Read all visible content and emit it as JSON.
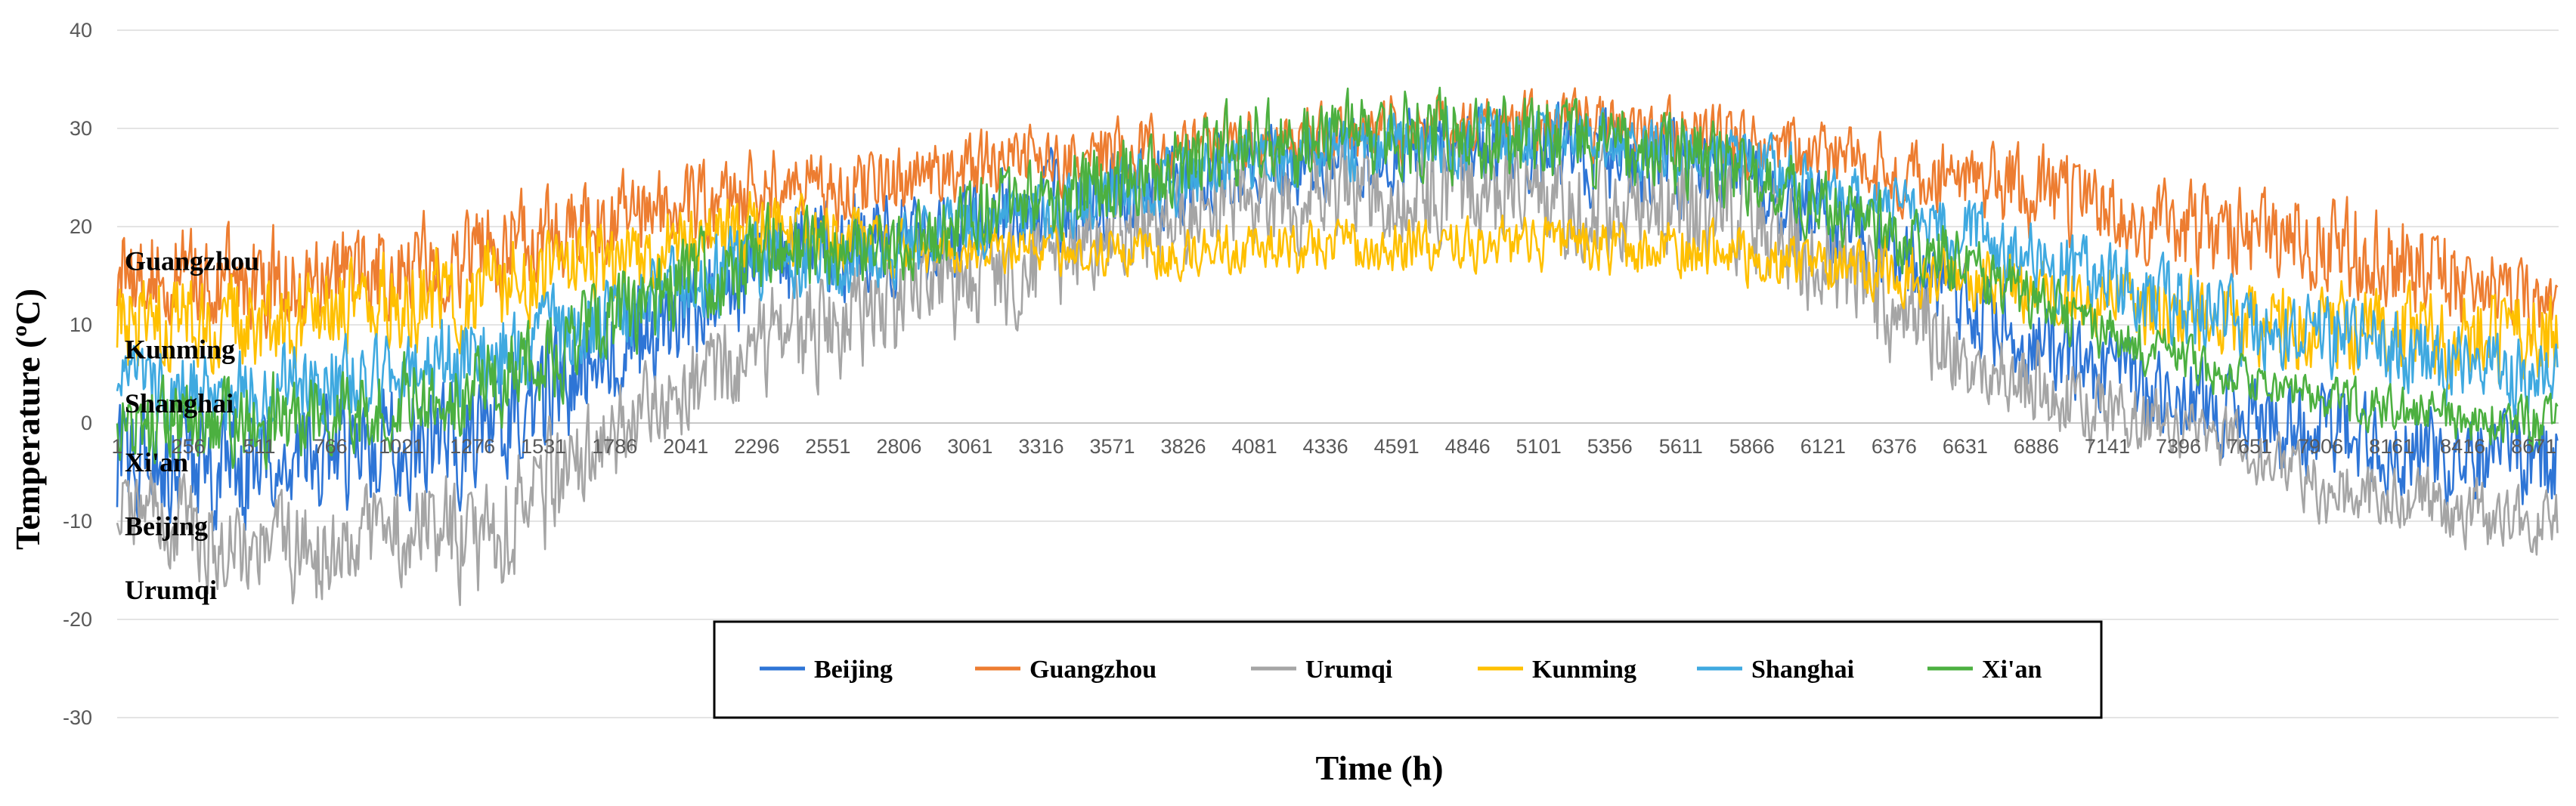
{
  "chart_data": {
    "type": "line",
    "title": "",
    "xlabel": "Time (h)",
    "ylabel": "Temperature (ºC)",
    "ylim": [
      -30,
      40
    ],
    "xlim": [
      1,
      8760
    ],
    "y_ticks": [
      -30,
      -20,
      -10,
      0,
      10,
      20,
      30,
      40
    ],
    "y_tick_labels": [
      "-30",
      "-20",
      "-10",
      "0",
      "10",
      "20",
      "30",
      "40"
    ],
    "x_tick_labels": [
      "1",
      "256",
      "511",
      "766",
      "1021",
      "1276",
      "1531",
      "1786",
      "2041",
      "2296",
      "2551",
      "2806",
      "3061",
      "3316",
      "3571",
      "3826",
      "4081",
      "4336",
      "4591",
      "4846",
      "5101",
      "5356",
      "5611",
      "5866",
      "6121",
      "6376",
      "6631",
      "6886",
      "7141",
      "7396",
      "7651",
      "7906",
      "8161",
      "8416",
      "8671"
    ],
    "x_tick_values": [
      1,
      256,
      511,
      766,
      1021,
      1276,
      1531,
      1786,
      2041,
      2296,
      2551,
      2806,
      3061,
      3316,
      3571,
      3826,
      4081,
      4336,
      4591,
      4846,
      5101,
      5356,
      5611,
      5866,
      6121,
      6376,
      6631,
      6886,
      7141,
      7396,
      7651,
      7906,
      8161,
      8416,
      8671
    ],
    "gridlines": true,
    "legend_position": "bottom-center",
    "annotations": [
      {
        "text": "Guangzhou",
        "y": 16.5
      },
      {
        "text": "Kunming",
        "y": 7.5
      },
      {
        "text": "Shanghai",
        "y": 2
      },
      {
        "text": "Xi'an",
        "y": -4
      },
      {
        "text": "Beijing",
        "y": -10.5
      },
      {
        "text": "Urumqi",
        "y": -17
      }
    ],
    "series": [
      {
        "name": "Beijing",
        "color": "#2E75D6",
        "x": [
          1,
          256,
          511,
          766,
          1021,
          1276,
          1531,
          1786,
          2041,
          2296,
          2551,
          2806,
          3061,
          3316,
          3571,
          3826,
          4081,
          4336,
          4591,
          4846,
          5101,
          5356,
          5611,
          5866,
          6121,
          6376,
          6631,
          6886,
          7141,
          7396,
          7651,
          7906,
          8161,
          8416,
          8671,
          8760
        ],
        "low": [
          -12,
          -13,
          -14,
          -12,
          -11,
          -10,
          -7,
          -2,
          3,
          8,
          9,
          12,
          13,
          15,
          17,
          18,
          20,
          21,
          22,
          22,
          21,
          20,
          20,
          19,
          15,
          10,
          5,
          1,
          -2,
          -4,
          -6,
          -8,
          -9,
          -10,
          -11,
          -11
        ],
        "high": [
          5,
          4,
          5,
          6,
          6,
          8,
          12,
          16,
          20,
          24,
          25,
          26,
          28,
          29,
          30,
          31,
          32,
          32,
          33,
          34,
          35,
          34,
          33,
          31,
          27,
          23,
          19,
          15,
          11,
          9,
          7,
          6,
          4,
          3,
          3,
          3
        ]
      },
      {
        "name": "Guangzhou",
        "color": "#ED7D31",
        "x": [
          1,
          256,
          511,
          766,
          1021,
          1276,
          1531,
          1786,
          2041,
          2296,
          2551,
          2806,
          3061,
          3316,
          3571,
          3826,
          4081,
          4336,
          4591,
          4846,
          5101,
          5356,
          5611,
          5866,
          6121,
          6376,
          6631,
          6886,
          7141,
          7396,
          7651,
          7906,
          8161,
          8416,
          8671,
          8760
        ],
        "low": [
          8,
          8,
          7,
          8,
          9,
          10,
          12,
          14,
          16,
          18,
          18,
          20,
          21,
          22,
          23,
          24,
          24,
          24,
          25,
          25,
          25,
          25,
          25,
          24,
          22,
          20,
          19,
          17,
          15,
          13,
          12,
          11,
          9,
          8,
          7,
          7
        ],
        "high": [
          23,
          22,
          22,
          23,
          24,
          25,
          26,
          27,
          28,
          30,
          29,
          30,
          31,
          32,
          33,
          33,
          34,
          34,
          35,
          35,
          35,
          35,
          34,
          33,
          32,
          30,
          30,
          31,
          27,
          26,
          27,
          26,
          24,
          21,
          17,
          15
        ]
      },
      {
        "name": "Urumqi",
        "color": "#A5A5A5",
        "x": [
          1,
          256,
          511,
          766,
          1021,
          1276,
          1531,
          1786,
          2041,
          2296,
          2551,
          2806,
          3061,
          3316,
          3571,
          3826,
          4081,
          4336,
          4591,
          4846,
          5101,
          5356,
          5611,
          5866,
          6121,
          6376,
          6631,
          6886,
          7141,
          7396,
          7651,
          7906,
          8161,
          8416,
          8671,
          8760
        ],
        "low": [
          -14,
          -18,
          -20,
          -22,
          -18,
          -21,
          -16,
          -8,
          -3,
          0,
          2,
          4,
          6,
          9,
          12,
          14,
          16,
          16,
          16,
          16,
          15,
          14,
          14,
          13,
          8,
          4,
          0,
          -2,
          -4,
          -5,
          -7,
          -12,
          -12,
          -14,
          -16,
          -14
        ],
        "high": [
          -2,
          -4,
          -5,
          -6,
          -2,
          -4,
          2,
          6,
          10,
          16,
          18,
          20,
          22,
          24,
          26,
          28,
          30,
          30,
          31,
          31,
          31,
          30,
          30,
          29,
          24,
          20,
          14,
          10,
          6,
          4,
          2,
          -2,
          -3,
          -4,
          -6,
          -5
        ]
      },
      {
        "name": "Kunming",
        "color": "#FFC000",
        "x": [
          1,
          256,
          511,
          766,
          1021,
          1276,
          1531,
          1786,
          2041,
          2296,
          2551,
          2806,
          3061,
          3316,
          3571,
          3826,
          4081,
          4336,
          4591,
          4846,
          5101,
          5356,
          5611,
          5866,
          6121,
          6376,
          6631,
          6886,
          7141,
          7396,
          7651,
          7906,
          8161,
          8416,
          8671,
          8760
        ],
        "low": [
          2,
          3,
          3,
          4,
          5,
          6,
          8,
          10,
          12,
          13,
          13,
          14,
          14,
          14,
          14,
          14,
          14,
          14,
          14,
          14,
          14,
          14,
          14,
          13,
          12,
          11,
          10,
          8,
          7,
          5,
          4,
          3,
          3,
          2,
          2,
          2
        ],
        "high": [
          17,
          17,
          18,
          19,
          20,
          21,
          22,
          23,
          24,
          26,
          24,
          22,
          21,
          21,
          21,
          21,
          22,
          22,
          22,
          22,
          22,
          22,
          22,
          21,
          20,
          20,
          19,
          18,
          18,
          17,
          17,
          16,
          16,
          15,
          15,
          15
        ]
      },
      {
        "name": "Shanghai",
        "color": "#3FA9E0",
        "x": [
          1,
          256,
          511,
          766,
          1021,
          1276,
          1531,
          1786,
          2041,
          2296,
          2551,
          2806,
          3061,
          3316,
          3571,
          3826,
          4081,
          4336,
          4591,
          4846,
          5101,
          5356,
          5611,
          5866,
          6121,
          6376,
          6631,
          6886,
          7141,
          7396,
          7651,
          7906,
          8161,
          8416,
          8671,
          8760
        ],
        "low": [
          -2,
          -2,
          -3,
          -2,
          -1,
          0,
          2,
          5,
          8,
          10,
          11,
          13,
          15,
          17,
          19,
          20,
          22,
          23,
          24,
          24,
          24,
          24,
          23,
          22,
          20,
          17,
          14,
          11,
          8,
          6,
          4,
          3,
          1,
          0,
          -1,
          -1
        ],
        "high": [
          10,
          9,
          10,
          11,
          12,
          13,
          15,
          17,
          20,
          22,
          22,
          23,
          25,
          26,
          28,
          30,
          31,
          32,
          33,
          34,
          34,
          33,
          32,
          31,
          28,
          26,
          24,
          22,
          20,
          18,
          16,
          15,
          13,
          12,
          10,
          10
        ]
      },
      {
        "name": "Xi'an",
        "color": "#4CB040",
        "x": [
          1,
          256,
          511,
          766,
          1021,
          1276,
          1531,
          1786,
          2041,
          2296,
          2551,
          2806,
          3061,
          3316,
          3571,
          3826,
          4081,
          4336,
          4591,
          4846,
          5101,
          5356,
          5611,
          5866,
          6121,
          6376,
          6631,
          6886,
          7141,
          7396,
          7651,
          7906,
          8161,
          8416,
          8671,
          8760
        ],
        "low": [
          -6,
          -7,
          -6,
          -5,
          -4,
          -3,
          0,
          4,
          8,
          11,
          12,
          13,
          15,
          17,
          19,
          20,
          22,
          22,
          23,
          23,
          22,
          22,
          21,
          20,
          17,
          14,
          11,
          8,
          5,
          3,
          1,
          -1,
          -2,
          -3,
          -4,
          -4
        ],
        "high": [
          6,
          6,
          7,
          8,
          9,
          10,
          13,
          17,
          21,
          24,
          23,
          24,
          27,
          29,
          31,
          33,
          35,
          35,
          36,
          37,
          35,
          34,
          33,
          31,
          27,
          24,
          21,
          17,
          13,
          10,
          8,
          6,
          5,
          4,
          4,
          4
        ]
      }
    ]
  }
}
